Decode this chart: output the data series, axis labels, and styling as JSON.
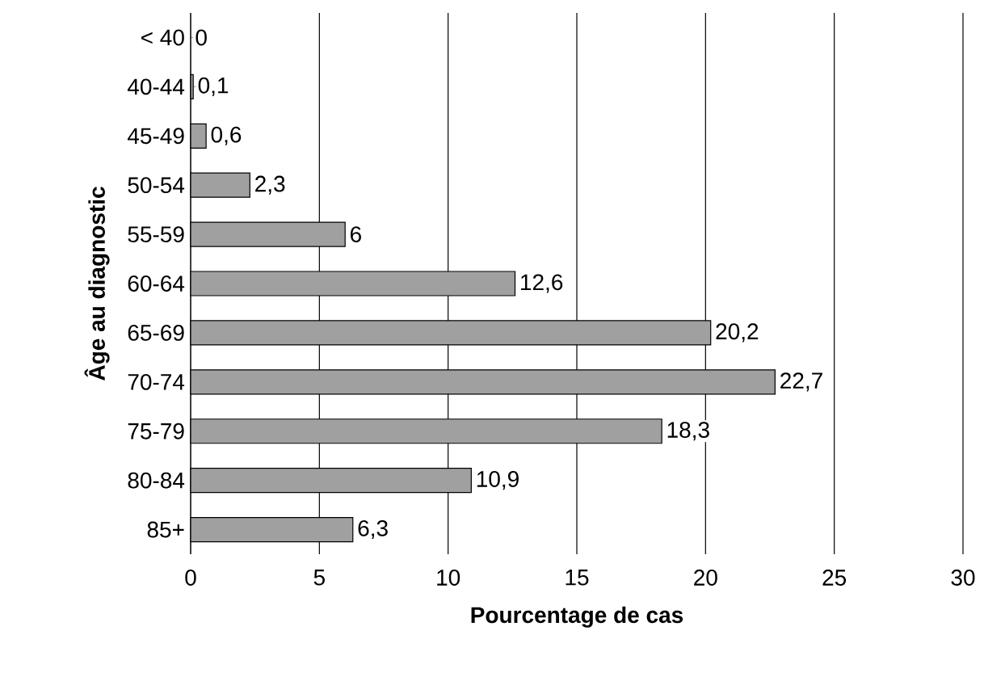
{
  "chart_data": {
    "type": "bar",
    "orientation": "horizontal",
    "xlabel": "Pourcentage de cas",
    "ylabel": "Âge au diagnostic",
    "categories": [
      "< 40",
      "40-44",
      "45-49",
      "50-54",
      "55-59",
      "60-64",
      "65-69",
      "70-74",
      "75-79",
      "80-84",
      "85+"
    ],
    "values": [
      0,
      0.1,
      0.6,
      2.3,
      6,
      12.6,
      20.2,
      22.7,
      18.3,
      10.9,
      6.3
    ],
    "value_labels": [
      "0",
      "0,1",
      "0,6",
      "2,3",
      "6",
      "12,6",
      "20,2",
      "22,7",
      "18,3",
      "10,9",
      "6,3"
    ],
    "color": "#a0a0a0",
    "xlim": [
      0,
      30
    ],
    "xticks": [
      0,
      5,
      10,
      15,
      20,
      25,
      30
    ],
    "grid": "x"
  }
}
